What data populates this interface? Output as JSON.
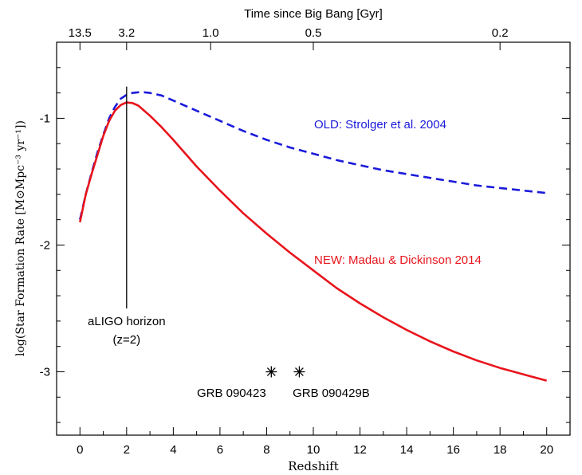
{
  "chart_data": {
    "type": "line",
    "xlabel": "Redshift",
    "ylabel": "log(Star Formation Rate [M⊙Mpc⁻³ yr⁻¹])",
    "top_axis_label": "Time since Big Bang [Gyr]",
    "xlim": [
      -1,
      21
    ],
    "ylim": [
      -3.5,
      -0.4
    ],
    "x_ticks": [
      0,
      2,
      4,
      6,
      8,
      10,
      12,
      14,
      16,
      18,
      20
    ],
    "x_tick_labels": [
      "0",
      "2",
      "4",
      "6",
      "8",
      "10",
      "12",
      "14",
      "16",
      "18",
      "20"
    ],
    "y_ticks": [
      -3,
      -2,
      -1
    ],
    "y_tick_labels": [
      "-3",
      "-2",
      "-1"
    ],
    "top_ticks": [
      {
        "label": "13.5",
        "z": 0
      },
      {
        "label": "3.2",
        "z": 2
      },
      {
        "label": "1.0",
        "z": 5.6
      },
      {
        "label": "0.5",
        "z": 10
      },
      {
        "label": "0.2",
        "z": 18
      }
    ],
    "grid": false,
    "series": [
      {
        "name": "OLD: Strolger et al. 2004",
        "color": "#1a1adb",
        "style": "dashed",
        "x": [
          0,
          0.25,
          0.5,
          0.75,
          1,
          1.25,
          1.5,
          1.75,
          2,
          2.25,
          2.5,
          2.75,
          3,
          3.5,
          4,
          5,
          6,
          7,
          8,
          9,
          10,
          11,
          12,
          13,
          14,
          15,
          16,
          17,
          18,
          19,
          20
        ],
        "values": [
          -1.8,
          -1.6,
          -1.43,
          -1.27,
          -1.13,
          -1.0,
          -0.91,
          -0.845,
          -0.815,
          -0.8,
          -0.795,
          -0.795,
          -0.8,
          -0.82,
          -0.86,
          -0.94,
          -1.02,
          -1.1,
          -1.17,
          -1.23,
          -1.28,
          -1.33,
          -1.37,
          -1.41,
          -1.44,
          -1.47,
          -1.5,
          -1.53,
          -1.55,
          -1.57,
          -1.59
        ]
      },
      {
        "name": "NEW: Madau & Dickinson 2014",
        "color": "#e8141c",
        "style": "solid",
        "x": [
          0,
          0.25,
          0.5,
          0.75,
          1,
          1.25,
          1.5,
          1.75,
          2,
          2.25,
          2.5,
          2.75,
          3,
          3.5,
          4,
          5,
          6,
          7,
          8,
          9,
          10,
          11,
          12,
          13,
          14,
          15,
          16,
          17,
          18,
          19,
          20
        ],
        "values": [
          -1.82,
          -1.6,
          -1.44,
          -1.29,
          -1.14,
          -1.02,
          -0.94,
          -0.895,
          -0.875,
          -0.88,
          -0.9,
          -0.94,
          -0.98,
          -1.07,
          -1.17,
          -1.38,
          -1.57,
          -1.75,
          -1.91,
          -2.06,
          -2.2,
          -2.34,
          -2.46,
          -2.57,
          -2.67,
          -2.76,
          -2.84,
          -2.91,
          -2.97,
          -3.02,
          -3.07
        ]
      }
    ],
    "vline": {
      "x": 2,
      "y_from": -0.75,
      "y_to": -2.5,
      "label_line1": "aLIGO horizon",
      "label_line2": "(z=2)"
    },
    "points": [
      {
        "label": "GRB 090423",
        "x": 8.2,
        "y": -3.0
      },
      {
        "label": "GRB 090429B",
        "x": 9.4,
        "y": -3.0
      }
    ]
  }
}
